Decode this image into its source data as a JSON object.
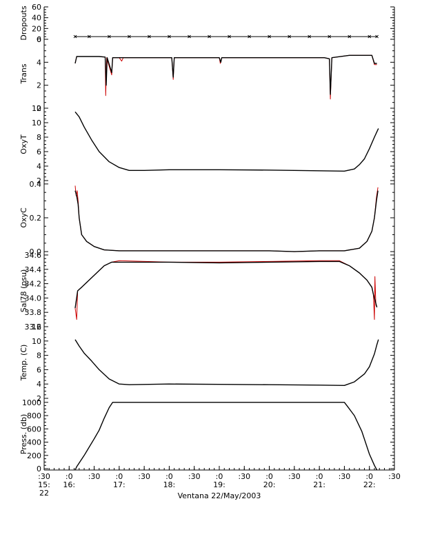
{
  "chart_data": {
    "type": "line",
    "xlabel": "Ventana 22/May/2003",
    "x_ticks": [
      {
        "t": 15.5,
        "label": ":30",
        "sub": "15:",
        "sub2": "22"
      },
      {
        "t": 16.0,
        "label": ":0",
        "sub": "16:"
      },
      {
        "t": 16.5,
        "label": ":30"
      },
      {
        "t": 17.0,
        "label": ":0",
        "sub": "17:"
      },
      {
        "t": 17.5,
        "label": ":30"
      },
      {
        "t": 18.0,
        "label": ":0",
        "sub": "18:"
      },
      {
        "t": 18.5,
        "label": ":30"
      },
      {
        "t": 19.0,
        "label": ":0",
        "sub": "19:"
      },
      {
        "t": 19.5,
        "label": ":30"
      },
      {
        "t": 20.0,
        "label": ":0",
        "sub": "20:"
      },
      {
        "t": 20.5,
        "label": ":30"
      },
      {
        "t": 21.0,
        "label": ":0",
        "sub": "21:"
      },
      {
        "t": 21.5,
        "label": ":30"
      },
      {
        "t": 22.0,
        "label": ":0",
        "sub": "22:"
      },
      {
        "t": 22.5,
        "label": ":30"
      }
    ],
    "xlim": [
      15.5,
      22.5
    ],
    "panels": [
      {
        "name": "dropouts",
        "ylabel": "Dropouts",
        "ylim": [
          0,
          60
        ],
        "yticks": [
          0,
          20,
          40,
          60
        ],
        "series": [
          {
            "color": "#000000",
            "marker": "x",
            "points": [
              [
                16.12,
                5
              ],
              [
                16.4,
                5
              ],
              [
                16.8,
                5
              ],
              [
                17.2,
                5
              ],
              [
                17.6,
                5
              ],
              [
                18.0,
                5
              ],
              [
                18.4,
                5
              ],
              [
                18.8,
                5
              ],
              [
                19.2,
                5
              ],
              [
                19.6,
                5
              ],
              [
                20.0,
                5
              ],
              [
                20.4,
                5
              ],
              [
                20.8,
                5
              ],
              [
                21.2,
                5
              ],
              [
                21.6,
                5
              ],
              [
                22.0,
                5
              ],
              [
                22.15,
                5
              ]
            ]
          }
        ]
      },
      {
        "name": "trans",
        "ylabel": "Trans",
        "ylim": [
          0,
          6
        ],
        "yticks": [
          0,
          2,
          4,
          6
        ],
        "series": [
          {
            "color": "#cc0000",
            "points": [
              [
                16.12,
                3.9
              ],
              [
                16.15,
                4.5
              ],
              [
                16.6,
                4.5
              ],
              [
                16.72,
                4.45
              ],
              [
                16.73,
                1.1
              ],
              [
                16.75,
                4.4
              ],
              [
                16.85,
                2.9
              ],
              [
                16.87,
                4.4
              ],
              [
                17.0,
                4.4
              ],
              [
                17.05,
                4.1
              ],
              [
                17.08,
                4.4
              ],
              [
                18.05,
                4.4
              ],
              [
                18.08,
                2.5
              ],
              [
                18.1,
                4.4
              ],
              [
                19.0,
                4.4
              ],
              [
                19.02,
                3.9
              ],
              [
                19.05,
                4.4
              ],
              [
                21.1,
                4.4
              ],
              [
                21.2,
                4.3
              ],
              [
                21.22,
                0.8
              ],
              [
                21.25,
                4.4
              ],
              [
                21.6,
                4.6
              ],
              [
                22.05,
                4.6
              ],
              [
                22.1,
                3.8
              ],
              [
                22.15,
                3.8
              ]
            ]
          },
          {
            "color": "#000000",
            "points": [
              [
                16.12,
                3.9
              ],
              [
                16.15,
                4.5
              ],
              [
                16.6,
                4.5
              ],
              [
                16.72,
                4.45
              ],
              [
                16.74,
                2.0
              ],
              [
                16.76,
                4.4
              ],
              [
                16.85,
                3.1
              ],
              [
                16.87,
                4.4
              ],
              [
                17.05,
                4.4
              ],
              [
                18.05,
                4.4
              ],
              [
                18.08,
                2.7
              ],
              [
                18.1,
                4.4
              ],
              [
                19.0,
                4.4
              ],
              [
                19.03,
                4.0
              ],
              [
                19.05,
                4.4
              ],
              [
                21.1,
                4.4
              ],
              [
                21.2,
                4.3
              ],
              [
                21.22,
                1.2
              ],
              [
                21.25,
                4.4
              ],
              [
                21.6,
                4.6
              ],
              [
                22.05,
                4.6
              ],
              [
                22.1,
                3.9
              ],
              [
                22.15,
                3.9
              ]
            ]
          }
        ]
      },
      {
        "name": "oxyt",
        "ylabel": "OxyT",
        "ylim": [
          2,
          12
        ],
        "yticks": [
          2,
          4,
          6,
          8,
          10,
          12
        ],
        "series": [
          {
            "color": "#000000",
            "points": [
              [
                16.12,
                11.5
              ],
              [
                16.2,
                10.8
              ],
              [
                16.3,
                9.4
              ],
              [
                16.45,
                7.6
              ],
              [
                16.6,
                6.0
              ],
              [
                16.8,
                4.6
              ],
              [
                17.0,
                3.8
              ],
              [
                17.2,
                3.4
              ],
              [
                17.5,
                3.4
              ],
              [
                18.0,
                3.5
              ],
              [
                19.0,
                3.5
              ],
              [
                20.0,
                3.45
              ],
              [
                21.0,
                3.35
              ],
              [
                21.5,
                3.3
              ],
              [
                21.7,
                3.6
              ],
              [
                21.8,
                4.2
              ],
              [
                21.9,
                5.0
              ],
              [
                22.0,
                6.4
              ],
              [
                22.1,
                8.0
              ],
              [
                22.18,
                9.2
              ]
            ]
          }
        ]
      },
      {
        "name": "oxyc",
        "ylabel": "OxyC",
        "ylim": [
          -0.02,
          0.42
        ],
        "yticks": [
          0.0,
          0.2,
          0.4
        ],
        "series": [
          {
            "color": "#cc0000",
            "points": [
              [
                16.12,
                0.39
              ],
              [
                16.14,
                0.33
              ],
              [
                16.16,
                0.36
              ],
              [
                16.18,
                0.3
              ],
              [
                16.2,
                0.2
              ],
              [
                16.25,
                0.1
              ],
              [
                16.35,
                0.06
              ],
              [
                16.5,
                0.03
              ],
              [
                16.7,
                0.01
              ],
              [
                17.0,
                0.005
              ],
              [
                18.0,
                0.005
              ],
              [
                19.0,
                0.005
              ],
              [
                20.0,
                0.005
              ],
              [
                20.5,
                0.0
              ],
              [
                21.0,
                0.005
              ],
              [
                21.5,
                0.005
              ],
              [
                21.8,
                0.02
              ],
              [
                21.95,
                0.06
              ],
              [
                22.05,
                0.12
              ],
              [
                22.1,
                0.2
              ],
              [
                22.14,
                0.32
              ],
              [
                22.17,
                0.38
              ]
            ]
          },
          {
            "color": "#000000",
            "points": [
              [
                16.12,
                0.36
              ],
              [
                16.15,
                0.33
              ],
              [
                16.18,
                0.28
              ],
              [
                16.2,
                0.2
              ],
              [
                16.25,
                0.1
              ],
              [
                16.35,
                0.06
              ],
              [
                16.5,
                0.03
              ],
              [
                16.7,
                0.01
              ],
              [
                17.0,
                0.005
              ],
              [
                18.0,
                0.005
              ],
              [
                19.0,
                0.005
              ],
              [
                20.0,
                0.005
              ],
              [
                20.5,
                0.0
              ],
              [
                21.0,
                0.005
              ],
              [
                21.5,
                0.005
              ],
              [
                21.8,
                0.02
              ],
              [
                21.95,
                0.06
              ],
              [
                22.05,
                0.12
              ],
              [
                22.1,
                0.2
              ],
              [
                22.14,
                0.3
              ],
              [
                22.17,
                0.36
              ]
            ]
          }
        ]
      },
      {
        "name": "sal78",
        "ylabel": "Sal78 (psu)",
        "ylim": [
          33.6,
          34.6
        ],
        "yticks": [
          33.6,
          33.8,
          34.0,
          34.2,
          34.4,
          34.6
        ],
        "series": [
          {
            "color": "#cc0000",
            "points": [
              [
                16.12,
                33.86
              ],
              [
                16.15,
                33.7
              ],
              [
                16.17,
                34.1
              ],
              [
                16.25,
                34.15
              ],
              [
                16.4,
                34.25
              ],
              [
                16.55,
                34.35
              ],
              [
                16.7,
                34.45
              ],
              [
                16.85,
                34.5
              ],
              [
                17.0,
                34.52
              ],
              [
                18.0,
                34.5
              ],
              [
                19.0,
                34.5
              ],
              [
                20.0,
                34.51
              ],
              [
                21.0,
                34.52
              ],
              [
                21.4,
                34.52
              ],
              [
                21.6,
                34.45
              ],
              [
                21.8,
                34.35
              ],
              [
                21.95,
                34.25
              ],
              [
                22.05,
                34.15
              ],
              [
                22.08,
                34.05
              ],
              [
                22.1,
                33.7
              ],
              [
                22.11,
                34.3
              ],
              [
                22.13,
                33.9
              ],
              [
                22.15,
                33.88
              ]
            ]
          },
          {
            "color": "#000000",
            "points": [
              [
                16.12,
                33.86
              ],
              [
                16.17,
                34.1
              ],
              [
                16.25,
                34.15
              ],
              [
                16.4,
                34.25
              ],
              [
                16.55,
                34.35
              ],
              [
                16.7,
                34.45
              ],
              [
                16.85,
                34.5
              ],
              [
                17.0,
                34.5
              ],
              [
                18.0,
                34.5
              ],
              [
                19.0,
                34.49
              ],
              [
                20.0,
                34.5
              ],
              [
                21.0,
                34.51
              ],
              [
                21.4,
                34.51
              ],
              [
                21.6,
                34.45
              ],
              [
                21.8,
                34.35
              ],
              [
                21.95,
                34.25
              ],
              [
                22.05,
                34.15
              ],
              [
                22.08,
                34.05
              ],
              [
                22.12,
                33.95
              ],
              [
                22.15,
                33.87
              ]
            ]
          }
        ]
      },
      {
        "name": "temp",
        "ylabel": "Temp. (C)",
        "ylim": [
          2,
          12
        ],
        "yticks": [
          2,
          4,
          6,
          8,
          10,
          12
        ],
        "series": [
          {
            "color": "#000000",
            "points": [
              [
                16.12,
                10.2
              ],
              [
                16.2,
                9.3
              ],
              [
                16.3,
                8.3
              ],
              [
                16.45,
                7.2
              ],
              [
                16.6,
                6.0
              ],
              [
                16.8,
                4.7
              ],
              [
                17.0,
                4.0
              ],
              [
                17.2,
                3.9
              ],
              [
                18.0,
                4.0
              ],
              [
                19.0,
                3.95
              ],
              [
                20.0,
                3.9
              ],
              [
                21.0,
                3.85
              ],
              [
                21.5,
                3.8
              ],
              [
                21.7,
                4.3
              ],
              [
                21.9,
                5.4
              ],
              [
                22.0,
                6.4
              ],
              [
                22.1,
                8.2
              ],
              [
                22.15,
                9.5
              ],
              [
                22.18,
                10.2
              ]
            ]
          }
        ]
      },
      {
        "name": "press",
        "ylabel": "Press. (db)",
        "ylim": [
          -20,
          1060
        ],
        "yticks": [
          0,
          200,
          400,
          600,
          800,
          1000
        ],
        "series": [
          {
            "color": "#000000",
            "points": [
              [
                16.12,
                -20
              ],
              [
                16.15,
                30
              ],
              [
                16.3,
                200
              ],
              [
                16.5,
                450
              ],
              [
                16.6,
                580
              ],
              [
                16.7,
                760
              ],
              [
                16.8,
                920
              ],
              [
                16.87,
                1000
              ],
              [
                17.0,
                1000
              ],
              [
                18.0,
                1000
              ],
              [
                19.0,
                1000
              ],
              [
                20.0,
                1000
              ],
              [
                21.0,
                1000
              ],
              [
                21.5,
                1000
              ],
              [
                21.55,
                950
              ],
              [
                21.7,
                800
              ],
              [
                21.85,
                560
              ],
              [
                22.0,
                220
              ],
              [
                22.1,
                50
              ],
              [
                22.15,
                -20
              ]
            ]
          }
        ]
      }
    ]
  }
}
